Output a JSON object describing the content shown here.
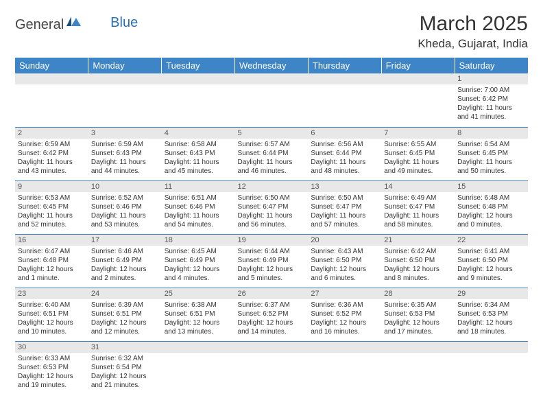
{
  "logo": {
    "text1": "General",
    "text2": "Blue"
  },
  "title": "March 2025",
  "location": "Kheda, Gujarat, India",
  "colors": {
    "headerBg": "#3d85c6",
    "headerText": "#ffffff",
    "dayNumBg": "#e8e8e8",
    "border": "#3d85c6",
    "logoBlue": "#2a6fb5"
  },
  "dayHeaders": [
    "Sunday",
    "Monday",
    "Tuesday",
    "Wednesday",
    "Thursday",
    "Friday",
    "Saturday"
  ],
  "weeks": [
    [
      null,
      null,
      null,
      null,
      null,
      null,
      {
        "n": "1",
        "sr": "Sunrise: 7:00 AM",
        "ss": "Sunset: 6:42 PM",
        "dl": "Daylight: 11 hours and 41 minutes."
      }
    ],
    [
      {
        "n": "2",
        "sr": "Sunrise: 6:59 AM",
        "ss": "Sunset: 6:42 PM",
        "dl": "Daylight: 11 hours and 43 minutes."
      },
      {
        "n": "3",
        "sr": "Sunrise: 6:59 AM",
        "ss": "Sunset: 6:43 PM",
        "dl": "Daylight: 11 hours and 44 minutes."
      },
      {
        "n": "4",
        "sr": "Sunrise: 6:58 AM",
        "ss": "Sunset: 6:43 PM",
        "dl": "Daylight: 11 hours and 45 minutes."
      },
      {
        "n": "5",
        "sr": "Sunrise: 6:57 AM",
        "ss": "Sunset: 6:44 PM",
        "dl": "Daylight: 11 hours and 46 minutes."
      },
      {
        "n": "6",
        "sr": "Sunrise: 6:56 AM",
        "ss": "Sunset: 6:44 PM",
        "dl": "Daylight: 11 hours and 48 minutes."
      },
      {
        "n": "7",
        "sr": "Sunrise: 6:55 AM",
        "ss": "Sunset: 6:45 PM",
        "dl": "Daylight: 11 hours and 49 minutes."
      },
      {
        "n": "8",
        "sr": "Sunrise: 6:54 AM",
        "ss": "Sunset: 6:45 PM",
        "dl": "Daylight: 11 hours and 50 minutes."
      }
    ],
    [
      {
        "n": "9",
        "sr": "Sunrise: 6:53 AM",
        "ss": "Sunset: 6:45 PM",
        "dl": "Daylight: 11 hours and 52 minutes."
      },
      {
        "n": "10",
        "sr": "Sunrise: 6:52 AM",
        "ss": "Sunset: 6:46 PM",
        "dl": "Daylight: 11 hours and 53 minutes."
      },
      {
        "n": "11",
        "sr": "Sunrise: 6:51 AM",
        "ss": "Sunset: 6:46 PM",
        "dl": "Daylight: 11 hours and 54 minutes."
      },
      {
        "n": "12",
        "sr": "Sunrise: 6:50 AM",
        "ss": "Sunset: 6:47 PM",
        "dl": "Daylight: 11 hours and 56 minutes."
      },
      {
        "n": "13",
        "sr": "Sunrise: 6:50 AM",
        "ss": "Sunset: 6:47 PM",
        "dl": "Daylight: 11 hours and 57 minutes."
      },
      {
        "n": "14",
        "sr": "Sunrise: 6:49 AM",
        "ss": "Sunset: 6:47 PM",
        "dl": "Daylight: 11 hours and 58 minutes."
      },
      {
        "n": "15",
        "sr": "Sunrise: 6:48 AM",
        "ss": "Sunset: 6:48 PM",
        "dl": "Daylight: 12 hours and 0 minutes."
      }
    ],
    [
      {
        "n": "16",
        "sr": "Sunrise: 6:47 AM",
        "ss": "Sunset: 6:48 PM",
        "dl": "Daylight: 12 hours and 1 minute."
      },
      {
        "n": "17",
        "sr": "Sunrise: 6:46 AM",
        "ss": "Sunset: 6:49 PM",
        "dl": "Daylight: 12 hours and 2 minutes."
      },
      {
        "n": "18",
        "sr": "Sunrise: 6:45 AM",
        "ss": "Sunset: 6:49 PM",
        "dl": "Daylight: 12 hours and 4 minutes."
      },
      {
        "n": "19",
        "sr": "Sunrise: 6:44 AM",
        "ss": "Sunset: 6:49 PM",
        "dl": "Daylight: 12 hours and 5 minutes."
      },
      {
        "n": "20",
        "sr": "Sunrise: 6:43 AM",
        "ss": "Sunset: 6:50 PM",
        "dl": "Daylight: 12 hours and 6 minutes."
      },
      {
        "n": "21",
        "sr": "Sunrise: 6:42 AM",
        "ss": "Sunset: 6:50 PM",
        "dl": "Daylight: 12 hours and 8 minutes."
      },
      {
        "n": "22",
        "sr": "Sunrise: 6:41 AM",
        "ss": "Sunset: 6:50 PM",
        "dl": "Daylight: 12 hours and 9 minutes."
      }
    ],
    [
      {
        "n": "23",
        "sr": "Sunrise: 6:40 AM",
        "ss": "Sunset: 6:51 PM",
        "dl": "Daylight: 12 hours and 10 minutes."
      },
      {
        "n": "24",
        "sr": "Sunrise: 6:39 AM",
        "ss": "Sunset: 6:51 PM",
        "dl": "Daylight: 12 hours and 12 minutes."
      },
      {
        "n": "25",
        "sr": "Sunrise: 6:38 AM",
        "ss": "Sunset: 6:51 PM",
        "dl": "Daylight: 12 hours and 13 minutes."
      },
      {
        "n": "26",
        "sr": "Sunrise: 6:37 AM",
        "ss": "Sunset: 6:52 PM",
        "dl": "Daylight: 12 hours and 14 minutes."
      },
      {
        "n": "27",
        "sr": "Sunrise: 6:36 AM",
        "ss": "Sunset: 6:52 PM",
        "dl": "Daylight: 12 hours and 16 minutes."
      },
      {
        "n": "28",
        "sr": "Sunrise: 6:35 AM",
        "ss": "Sunset: 6:53 PM",
        "dl": "Daylight: 12 hours and 17 minutes."
      },
      {
        "n": "29",
        "sr": "Sunrise: 6:34 AM",
        "ss": "Sunset: 6:53 PM",
        "dl": "Daylight: 12 hours and 18 minutes."
      }
    ],
    [
      {
        "n": "30",
        "sr": "Sunrise: 6:33 AM",
        "ss": "Sunset: 6:53 PM",
        "dl": "Daylight: 12 hours and 19 minutes."
      },
      {
        "n": "31",
        "sr": "Sunrise: 6:32 AM",
        "ss": "Sunset: 6:54 PM",
        "dl": "Daylight: 12 hours and 21 minutes."
      },
      null,
      null,
      null,
      null,
      null
    ]
  ]
}
